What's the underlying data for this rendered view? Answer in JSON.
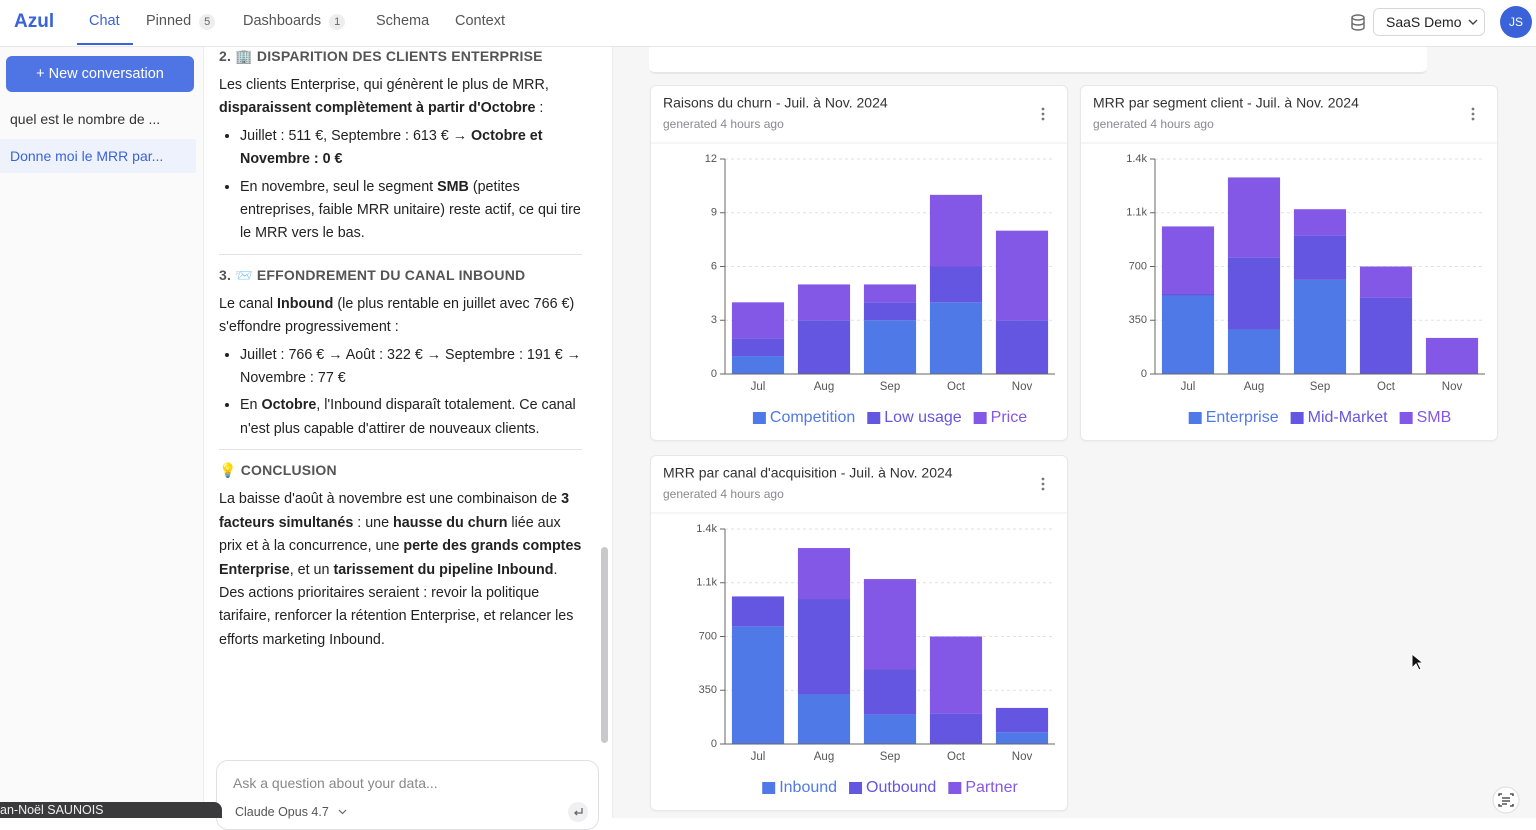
{
  "nav": {
    "brand": "Azul",
    "tabs": [
      {
        "label": "Chat"
      },
      {
        "label": "Pinned",
        "badge": 5
      },
      {
        "label": "Dashboards",
        "badge": 1
      },
      {
        "label": "Schema"
      },
      {
        "label": "Context"
      }
    ],
    "workspace": "SaaS Demo",
    "avatar": "JS"
  },
  "sidebar": {
    "new_button": "+ New conversation",
    "conversations": [
      "quel est le nombre de ...",
      "Donne moi le MRR par..."
    ],
    "user": "an-Noël SAUNOIS"
  },
  "chat": {
    "blocks": [
      {
        "heading": "2. 🏢 DISPARITION DES CLIENTS ENTERPRISE"
      },
      {
        "paragraph": [
          "Les clients Enterprise, qui génèrent le plus de MRR, ",
          "disparaissent complètement à partir d'Octobre",
          " :"
        ]
      },
      {
        "bullets": [
          [
            "Juillet : 511 €, Septembre : 613 € → ",
            "Octobre et Novembre : 0 €"
          ],
          [
            "En novembre, seul le segment ",
            "SMB",
            " (petites entreprises, faible MRR unitaire) reste actif, ce qui tire le MRR vers le bas."
          ]
        ]
      },
      {
        "heading": "3. 📨 EFFONDREMENT DU CANAL INBOUND"
      },
      {
        "paragraph": [
          "Le canal ",
          "Inbound",
          " (le plus rentable en juillet avec 766 €) s'effondre progressivement :"
        ]
      },
      {
        "bullets": [
          [
            "Juillet : 766 € → Août : 322 € → Septembre : 191 € → Novembre : 77 €"
          ],
          [
            "En ",
            "Octobre",
            ", l'Inbound disparaît totalement. Ce canal n'est plus capable d'attirer de nouveaux clients."
          ]
        ]
      },
      {
        "heading": "💡 CONCLUSION"
      },
      {
        "paragraph": [
          "La baisse d'août à novembre est une combinaison de ",
          "3 facteurs simultanés",
          " : une ",
          "hausse du churn",
          " liée aux prix et à la concurrence, une ",
          "perte des grands comptes Enterprise",
          ", et un ",
          "tarissement du pipeline Inbound",
          ". Des actions prioritaires seraient : revoir la politique tarifaire, renforcer la rétention Enterprise, et relancer les efforts marketing Inbound."
        ]
      }
    ],
    "input_placeholder": "Ask a question about your data...",
    "model": "Claude Opus 4.7"
  },
  "chart_data": [
    {
      "type": "bar",
      "stacked": true,
      "title": "Raisons du churn - Juil. à Nov. 2024",
      "subtitle": "generated 4 hours ago",
      "categories": [
        "Jul",
        "Aug",
        "Sep",
        "Oct",
        "Nov"
      ],
      "series": [
        {
          "name": "Competition",
          "color": "#5079e8",
          "values": [
            1,
            0,
            3,
            4,
            0
          ]
        },
        {
          "name": "Low usage",
          "color": "#6456e0",
          "values": [
            1,
            3,
            1,
            2,
            3
          ]
        },
        {
          "name": "Price",
          "color": "#8358e6",
          "values": [
            2,
            2,
            1,
            4,
            5
          ]
        }
      ],
      "ylim": [
        0,
        12
      ],
      "yticks": [
        0,
        3,
        6,
        9,
        12
      ],
      "grid": true,
      "legend": "bottom"
    },
    {
      "type": "bar",
      "stacked": true,
      "title": "MRR par segment client - Juil. à Nov. 2024",
      "subtitle": "generated 4 hours ago",
      "categories": [
        "Jul",
        "Aug",
        "Sep",
        "Oct",
        "Nov"
      ],
      "series": [
        {
          "name": "Enterprise",
          "color": "#5079e8",
          "values": [
            511,
            290,
            613,
            0,
            0
          ]
        },
        {
          "name": "Mid-Market",
          "color": "#6456e0",
          "values": [
            10,
            470,
            290,
            500,
            0
          ]
        },
        {
          "name": "SMB",
          "color": "#8358e6",
          "values": [
            440,
            520,
            170,
            200,
            235
          ]
        }
      ],
      "ylim": [
        0,
        1400
      ],
      "yticks": [
        0,
        350,
        700,
        {
          "value": 1050,
          "label": "1.1k"
        },
        {
          "value": 1400,
          "label": "1.4k"
        }
      ],
      "grid": true,
      "legend": "bottom"
    },
    {
      "type": "bar",
      "stacked": true,
      "title": "MRR par canal d'acquisition - Juil. à Nov. 2024",
      "subtitle": "generated 4 hours ago",
      "categories": [
        "Jul",
        "Aug",
        "Sep",
        "Oct",
        "Nov"
      ],
      "series": [
        {
          "name": "Inbound",
          "color": "#5079e8",
          "values": [
            766,
            322,
            191,
            0,
            77
          ]
        },
        {
          "name": "Outbound",
          "color": "#6456e0",
          "values": [
            195,
            622,
            297,
            200,
            158
          ]
        },
        {
          "name": "Partner",
          "color": "#8358e6",
          "values": [
            0,
            332,
            586,
            500,
            0
          ]
        }
      ],
      "ylim": [
        0,
        1400
      ],
      "yticks": [
        0,
        350,
        700,
        {
          "value": 1050,
          "label": "1.1k"
        },
        {
          "value": 1400,
          "label": "1.4k"
        }
      ],
      "grid": true,
      "legend": "bottom"
    }
  ]
}
